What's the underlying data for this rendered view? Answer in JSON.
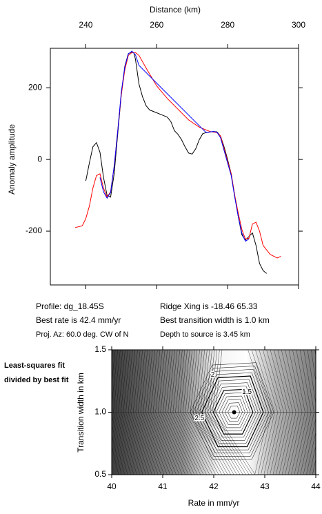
{
  "chart_data": [
    {
      "type": "line",
      "xlabel": "Distance (km)",
      "ylabel": "Anomaly amplitude",
      "xlim": [
        230,
        300
      ],
      "xticks": [
        240,
        260,
        280,
        300
      ],
      "ylim": [
        -350,
        310
      ],
      "yticks": [
        200,
        0,
        -200
      ],
      "series": [
        {
          "color": "#000000",
          "x": [
            240,
            241,
            242,
            243,
            244,
            245,
            246,
            247,
            248,
            249,
            250,
            251,
            252,
            253,
            253.5,
            254,
            255,
            256,
            257,
            258,
            260,
            262,
            263,
            264,
            265,
            266,
            267,
            268,
            269,
            270,
            271,
            272,
            273,
            274,
            276,
            277,
            278,
            279,
            280,
            281,
            282,
            283,
            284,
            285,
            286,
            287,
            288,
            289,
            290,
            291
          ],
          "values": [
            -60,
            -10,
            35,
            47,
            20,
            -50,
            -100,
            -105,
            -40,
            70,
            180,
            260,
            295,
            300,
            298,
            280,
            210,
            175,
            150,
            138,
            130,
            122,
            118,
            105,
            80,
            70,
            55,
            35,
            18,
            15,
            30,
            55,
            72,
            75,
            78,
            77,
            65,
            35,
            0,
            -40,
            -100,
            -160,
            -210,
            -225,
            -215,
            -205,
            -240,
            -290,
            -310,
            -318
          ]
        },
        {
          "color": "#ff0000",
          "x": [
            237,
            239,
            240,
            241,
            242,
            243,
            244,
            245,
            246,
            247,
            248,
            249,
            250,
            251,
            252,
            253,
            254,
            255,
            257,
            260,
            263,
            266,
            269,
            272,
            275,
            277,
            278,
            279,
            280,
            281,
            282,
            283,
            284,
            285,
            286,
            287,
            288,
            289,
            290,
            292,
            294,
            295
          ],
          "values": [
            -190,
            -185,
            -165,
            -130,
            -80,
            -45,
            -40,
            -80,
            -105,
            -90,
            -20,
            80,
            180,
            250,
            290,
            298,
            298,
            290,
            255,
            205,
            170,
            140,
            110,
            90,
            78,
            75,
            65,
            30,
            -5,
            -40,
            -100,
            -150,
            -195,
            -222,
            -220,
            -180,
            -175,
            -200,
            -240,
            -265,
            -275,
            -270
          ]
        },
        {
          "color": "#0000ff",
          "x": [
            244,
            245,
            246,
            247,
            248,
            249,
            250,
            251,
            252,
            253,
            254,
            255,
            274,
            275,
            276,
            277,
            278,
            279,
            280,
            281,
            282,
            283,
            284,
            285,
            286
          ],
          "values": [
            -50,
            -90,
            -108,
            -92,
            -18,
            78,
            188,
            258,
            294,
            302,
            292,
            262,
            74,
            77,
            78,
            76,
            60,
            25,
            -10,
            -45,
            -105,
            -160,
            -205,
            -228,
            -222
          ]
        }
      ],
      "annotations": [
        "Profile: dg_18.45S",
        "Best rate is 42.4 mm/yr",
        "Proj. Az: 60.0 deg. CW of N",
        "Ridge Xing is -18.46 65.33",
        "Best transition width is 1.0 km",
        "Depth to source is   3.45 km"
      ]
    },
    {
      "type": "contour",
      "title": "Least-squares fit divided by best fit",
      "xlabel": "Rate in mm/yr",
      "ylabel": "Transition width in km",
      "xlim": [
        40,
        44
      ],
      "xticks": [
        40,
        41,
        42,
        43,
        44
      ],
      "ylim": [
        0.5,
        1.5
      ],
      "yticks": [
        0.5,
        {
          "value": 1,
          "label": "1.0"
        },
        1.5
      ],
      "best": {
        "x": 42.4,
        "y": 1.0
      },
      "contour_labels": [
        {
          "label": "2",
          "x": 41.98,
          "y": 1.3
        },
        {
          "label": "1.5",
          "x": 42.65,
          "y": 1.16
        },
        {
          "label": "2.5",
          "x": 41.72,
          "y": 0.95
        }
      ]
    }
  ]
}
